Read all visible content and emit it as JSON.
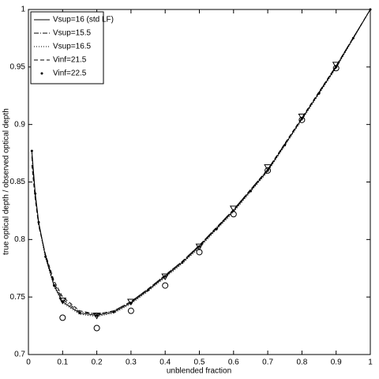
{
  "chart_data": {
    "type": "line",
    "xlabel": "unblended fraction",
    "ylabel": "true optical depth / observed optical depth",
    "xlim": [
      0,
      1
    ],
    "ylim": [
      0.7,
      1
    ],
    "xticks": [
      0,
      0.1,
      0.2,
      0.3,
      0.4,
      0.5,
      0.6,
      0.7,
      0.8,
      0.9,
      1
    ],
    "yticks": [
      0.7,
      0.75,
      0.8,
      0.85,
      0.9,
      0.95,
      1
    ],
    "legend": "upper left",
    "series": [
      {
        "name": "Vsup=16 (std LF)",
        "color": "#000000",
        "style": "solid",
        "x": [
          0.01,
          0.02,
          0.03,
          0.05,
          0.075,
          0.1,
          0.15,
          0.2,
          0.25,
          0.3,
          0.35,
          0.4,
          0.45,
          0.5,
          0.6,
          0.7,
          0.8,
          0.9,
          1
        ],
        "values": [
          0.877,
          0.84,
          0.815,
          0.785,
          0.76,
          0.746,
          0.736,
          0.734,
          0.737,
          0.745,
          0.756,
          0.768,
          0.78,
          0.794,
          0.825,
          0.86,
          0.905,
          0.95,
          1
        ]
      },
      {
        "name": "Vsup=15.5",
        "color": "#000000",
        "style": "dashdot",
        "x": [
          0.01,
          0.02,
          0.03,
          0.05,
          0.075,
          0.1,
          0.15,
          0.2,
          0.25,
          0.3,
          0.35,
          0.4,
          0.45,
          0.5,
          0.6,
          0.7,
          0.8,
          0.9,
          1
        ],
        "values": [
          0.872,
          0.838,
          0.814,
          0.786,
          0.762,
          0.748,
          0.737,
          0.735,
          0.738,
          0.746,
          0.757,
          0.769,
          0.781,
          0.795,
          0.826,
          0.861,
          0.905,
          0.951,
          1
        ]
      },
      {
        "name": "Vsup=16.5",
        "color": "#000000",
        "style": "dotted",
        "x": [
          0.01,
          0.02,
          0.03,
          0.05,
          0.075,
          0.1,
          0.15,
          0.2,
          0.25,
          0.3,
          0.35,
          0.4,
          0.45,
          0.5,
          0.6,
          0.7,
          0.8,
          0.9,
          1
        ],
        "values": [
          0.875,
          0.839,
          0.813,
          0.784,
          0.759,
          0.745,
          0.735,
          0.733,
          0.736,
          0.744,
          0.755,
          0.767,
          0.779,
          0.793,
          0.824,
          0.859,
          0.904,
          0.949,
          1
        ]
      },
      {
        "name": "Vinf=21.5",
        "color": "#000000",
        "style": "dashed",
        "x": [
          0.01,
          0.02,
          0.03,
          0.05,
          0.075,
          0.1,
          0.15,
          0.2,
          0.25,
          0.3,
          0.35,
          0.4,
          0.45,
          0.5,
          0.6,
          0.7,
          0.8,
          0.9,
          1
        ],
        "values": [
          0.865,
          0.835,
          0.812,
          0.787,
          0.764,
          0.75,
          0.738,
          0.735,
          0.738,
          0.746,
          0.757,
          0.769,
          0.781,
          0.795,
          0.826,
          0.861,
          0.906,
          0.951,
          1
        ]
      },
      {
        "name": "Vinf=22.5",
        "color": "#000000",
        "style": "points",
        "x": [
          0.01,
          0.02,
          0.03,
          0.05,
          0.075,
          0.1,
          0.15,
          0.2,
          0.25,
          0.3,
          0.35,
          0.4,
          0.45,
          0.5,
          0.55,
          0.6,
          0.65,
          0.7,
          0.75,
          0.8,
          0.85,
          0.9,
          0.95,
          1
        ],
        "values": [
          0.877,
          0.84,
          0.815,
          0.785,
          0.76,
          0.746,
          0.736,
          0.734,
          0.737,
          0.745,
          0.756,
          0.768,
          0.78,
          0.794,
          0.809,
          0.825,
          0.842,
          0.86,
          0.882,
          0.905,
          0.927,
          0.95,
          0.975,
          1
        ]
      },
      {
        "color": "#000000",
        "style": "circle",
        "x": [
          0.1,
          0.2,
          0.3,
          0.4,
          0.5,
          0.6,
          0.7,
          0.8,
          0.9
        ],
        "values": [
          0.732,
          0.723,
          0.738,
          0.76,
          0.789,
          0.822,
          0.86,
          0.904,
          0.949
        ]
      },
      {
        "color": "#000000",
        "style": "triangle",
        "x": [
          0.1,
          0.2,
          0.3,
          0.4,
          0.5,
          0.6,
          0.7,
          0.8,
          0.9
        ],
        "values": [
          0.747,
          0.734,
          0.746,
          0.768,
          0.794,
          0.827,
          0.863,
          0.907,
          0.952
        ]
      }
    ]
  }
}
